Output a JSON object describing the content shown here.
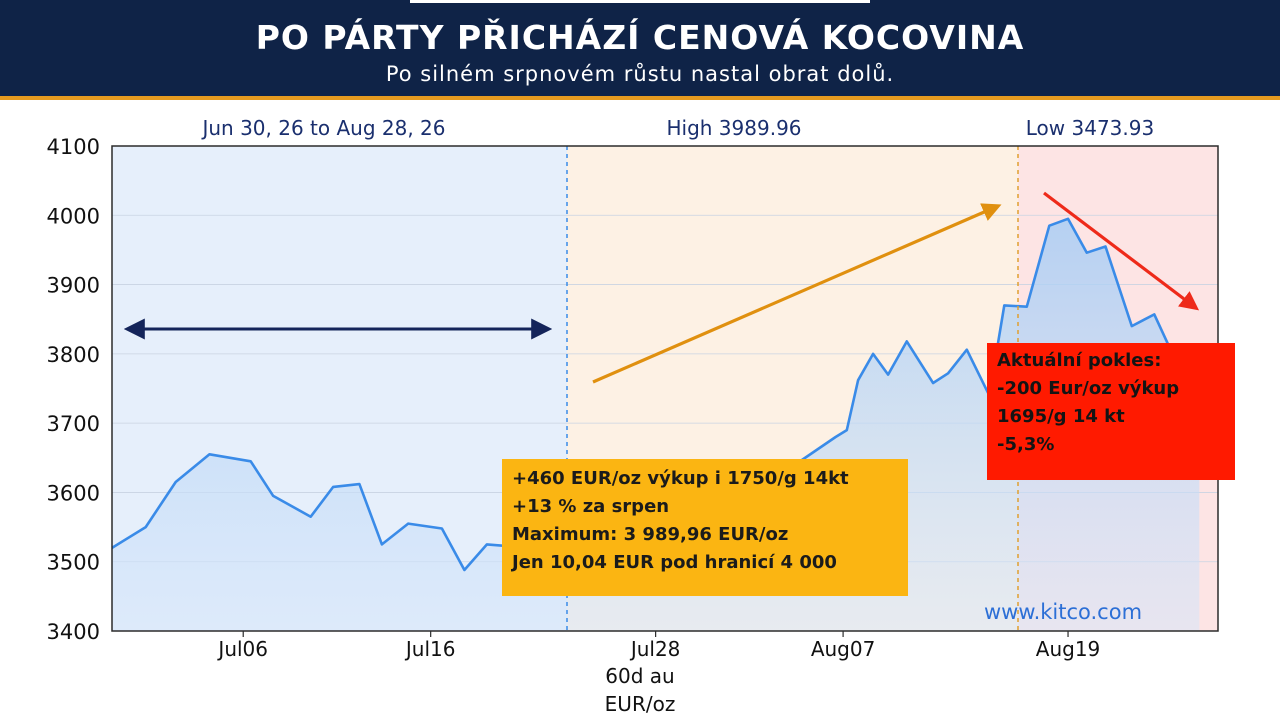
{
  "header": {
    "title": "PO PÁRTY PŘICHÁZÍ CENOVÁ KOCOVINA",
    "subtitle": "Po silném srpnovém růstu nastal obrat dolů."
  },
  "chart_data": {
    "type": "area",
    "date_range": "Jun 30, 26 to Aug 28, 26",
    "high_label": "High 3989.96",
    "low_label": "Low 3473.93",
    "xlabel": "60d au EUR/oz",
    "xlabel_lines": [
      "60d au",
      "EUR/oz"
    ],
    "ylim": [
      3400,
      4100
    ],
    "y_ticks": [
      3400,
      3500,
      3600,
      3700,
      3800,
      3900,
      4000,
      4100
    ],
    "x_ticks": [
      {
        "label": "Jul06",
        "x": 7
      },
      {
        "label": "Jul16",
        "x": 17
      },
      {
        "label": "Jul28",
        "x": 29
      },
      {
        "label": "Aug07",
        "x": 39
      },
      {
        "label": "Aug19",
        "x": 51
      }
    ],
    "x_range": [
      0,
      59
    ],
    "watermark": "www.kitco.com",
    "series": [
      {
        "x": [
          0,
          1.8,
          3.4,
          5.2,
          7.4,
          8.6,
          10.6,
          11.8,
          13.2,
          14.4,
          15.8,
          17.6,
          18.8,
          20,
          21.4,
          22.8,
          24.2,
          25.6,
          26.8,
          28.2,
          28.8,
          29.4,
          38.6,
          39.2,
          39.8,
          40.6,
          41.4,
          42.4,
          43.8,
          44.6,
          45.6,
          46.8,
          47.6,
          48.8,
          50,
          51,
          52,
          53,
          54.4,
          55.6,
          56.4,
          57.2,
          58
        ],
        "y": [
          3520,
          3550,
          3615,
          3655,
          3645,
          3595,
          3565,
          3608,
          3612,
          3525,
          3555,
          3548,
          3488,
          3525,
          3522,
          3588,
          3625,
          3560,
          3580,
          3588,
          3545,
          3510,
          3680,
          3690,
          3762,
          3800,
          3770,
          3818,
          3758,
          3772,
          3806,
          3740,
          3870,
          3868,
          3985,
          3995,
          3946,
          3955,
          3840,
          3857,
          3810,
          3795,
          3780
        ]
      }
    ],
    "annotations": {
      "gain": [
        "+460 EUR/oz výkup i 1750/g 14kt",
        "+13 % za srpen",
        "Maximum: 3 989,96 EUR/oz",
        "Jen 10,04 EUR pod hranicí 4 000"
      ],
      "drop": [
        "Aktuální pokles:",
        "-200 Eur/oz výkup",
        "1695/g 14 kt",
        "-5,3%"
      ]
    },
    "colors": {
      "line": "#3a8be8",
      "fill": "#a9cdf4",
      "zone_flat": "#e6effb",
      "zone_rise": "#fdf1e4",
      "zone_drop": "#fde4e4",
      "flat_arrow": "#14245a",
      "rise_arrow": "#e0900f",
      "drop_arrow": "#ee2a1a",
      "gain_box": "#fbb512",
      "drop_box": "#ff1a00",
      "header": "#0f2347",
      "accent_text": "#1a2f6e"
    }
  }
}
